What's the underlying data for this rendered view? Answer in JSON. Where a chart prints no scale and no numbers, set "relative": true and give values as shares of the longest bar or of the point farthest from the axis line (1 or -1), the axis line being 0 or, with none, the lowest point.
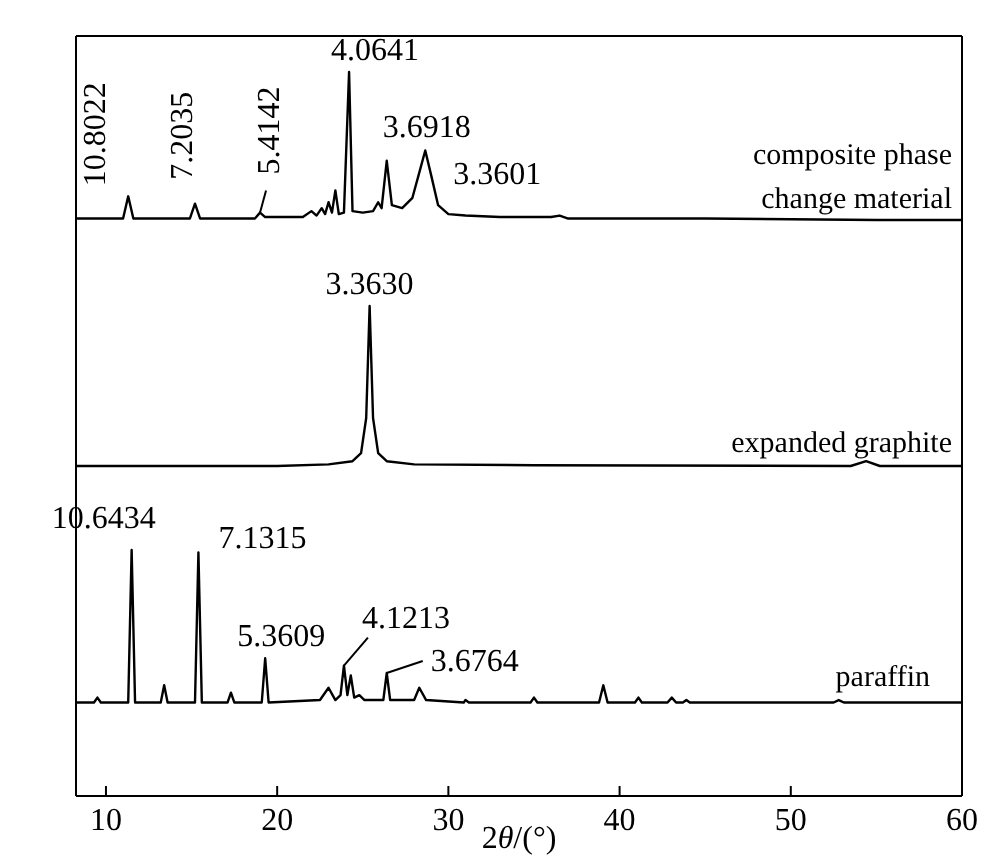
{
  "chart_data": [
    {
      "type": "line",
      "relative": true,
      "xlim": [
        8.25,
        60
      ],
      "series": [
        {
          "name": "composite phase change material",
          "color": "#000000",
          "x": [
            8.3,
            9.0,
            11.0,
            11.3,
            11.6,
            14.9,
            15.2,
            15.5,
            18.7,
            19.0,
            19.3,
            21.5,
            22.0,
            22.3,
            22.6,
            22.8,
            23.0,
            23.2,
            23.4,
            23.6,
            23.9,
            24.2,
            24.4,
            25.0,
            25.6,
            25.9,
            26.1,
            26.4,
            26.7,
            27.3,
            27.9,
            28.3,
            28.65,
            29.0,
            29.4,
            30.0,
            31.0,
            33.0,
            36.0,
            36.5,
            37.0,
            45.0,
            55.0,
            60.0
          ],
          "values": [
            0.01,
            0.01,
            0.01,
            0.16,
            0.01,
            0.01,
            0.11,
            0.01,
            0.01,
            0.05,
            0.02,
            0.02,
            0.06,
            0.03,
            0.08,
            0.04,
            0.12,
            0.05,
            0.2,
            0.04,
            0.05,
            1.0,
            0.06,
            0.05,
            0.06,
            0.12,
            0.08,
            0.4,
            0.1,
            0.08,
            0.15,
            0.32,
            0.47,
            0.3,
            0.1,
            0.04,
            0.03,
            0.02,
            0.02,
            0.03,
            0.01,
            0.01,
            0.0,
            0.0
          ]
        }
      ],
      "annotations": [
        {
          "text": "10.8022",
          "x": 11.3,
          "y": 0.16
        },
        {
          "text": "7.2035",
          "x": 15.2,
          "y": 0.11
        },
        {
          "text": "5.4142",
          "x": 19.0,
          "y": 0.05
        },
        {
          "text": "4.0641",
          "x": 24.2,
          "y": 1.0
        },
        {
          "text": "3.6918",
          "x": 26.4,
          "y": 0.4
        },
        {
          "text": "3.3601",
          "x": 28.65,
          "y": 0.47
        }
      ]
    },
    {
      "type": "line",
      "relative": true,
      "xlim": [
        8.25,
        60
      ],
      "series": [
        {
          "name": "expanded graphite",
          "color": "#000000",
          "x": [
            8.3,
            20,
            23,
            24.4,
            24.9,
            25.2,
            25.4,
            25.6,
            25.9,
            26.4,
            28,
            35,
            53.5,
            54.4,
            55.2,
            60
          ],
          "values": [
            0,
            0,
            0.01,
            0.03,
            0.08,
            0.3,
            1.0,
            0.3,
            0.08,
            0.03,
            0.01,
            0.005,
            0,
            0.03,
            0,
            0
          ]
        }
      ],
      "annotations": [
        {
          "text": "3.3630",
          "x": 25.4,
          "y": 1.0
        }
      ]
    },
    {
      "type": "line",
      "relative": true,
      "xlim": [
        8.25,
        60
      ],
      "xticks": [
        10,
        20,
        30,
        40,
        50,
        60
      ],
      "xlabel": "2θ/(°)",
      "series": [
        {
          "name": "paraffin",
          "color": "#000000",
          "x": [
            8.3,
            9.3,
            9.5,
            9.7,
            11.3,
            11.5,
            11.7,
            13.2,
            13.4,
            13.6,
            15.2,
            15.4,
            15.6,
            17.1,
            17.3,
            17.5,
            19.1,
            19.3,
            19.5,
            22.5,
            23.0,
            23.4,
            23.7,
            23.9,
            24.1,
            24.3,
            24.5,
            24.8,
            25.1,
            26.2,
            26.4,
            26.6,
            28.0,
            28.3,
            28.7,
            30.9,
            31.0,
            31.2,
            34.8,
            35.0,
            35.2,
            38.8,
            39.05,
            39.3,
            40.9,
            41.1,
            41.3,
            42.8,
            43.05,
            43.3,
            43.7,
            43.9,
            44.1,
            52.5,
            52.8,
            53.1,
            60
          ],
          "values": [
            0.38,
            0.38,
            0.4,
            0.38,
            0.38,
            1.0,
            0.38,
            0.38,
            0.45,
            0.38,
            0.38,
            0.99,
            0.38,
            0.38,
            0.42,
            0.38,
            0.38,
            0.56,
            0.38,
            0.39,
            0.44,
            0.39,
            0.41,
            0.53,
            0.41,
            0.49,
            0.4,
            0.41,
            0.39,
            0.39,
            0.5,
            0.39,
            0.39,
            0.44,
            0.39,
            0.38,
            0.39,
            0.38,
            0.38,
            0.4,
            0.38,
            0.38,
            0.45,
            0.38,
            0.38,
            0.4,
            0.38,
            0.38,
            0.4,
            0.38,
            0.38,
            0.39,
            0.38,
            0.38,
            0.39,
            0.38,
            0.38
          ]
        }
      ],
      "annotations": [
        {
          "text": "10.6434",
          "x": 11.5,
          "y": 1.0
        },
        {
          "text": "7.1315",
          "x": 15.4,
          "y": 0.99
        },
        {
          "text": "5.3609",
          "x": 19.3,
          "y": 0.56
        },
        {
          "text": "4.1213",
          "x": 23.9,
          "y": 0.53
        },
        {
          "text": "3.6764",
          "x": 26.4,
          "y": 0.5
        }
      ]
    }
  ]
}
